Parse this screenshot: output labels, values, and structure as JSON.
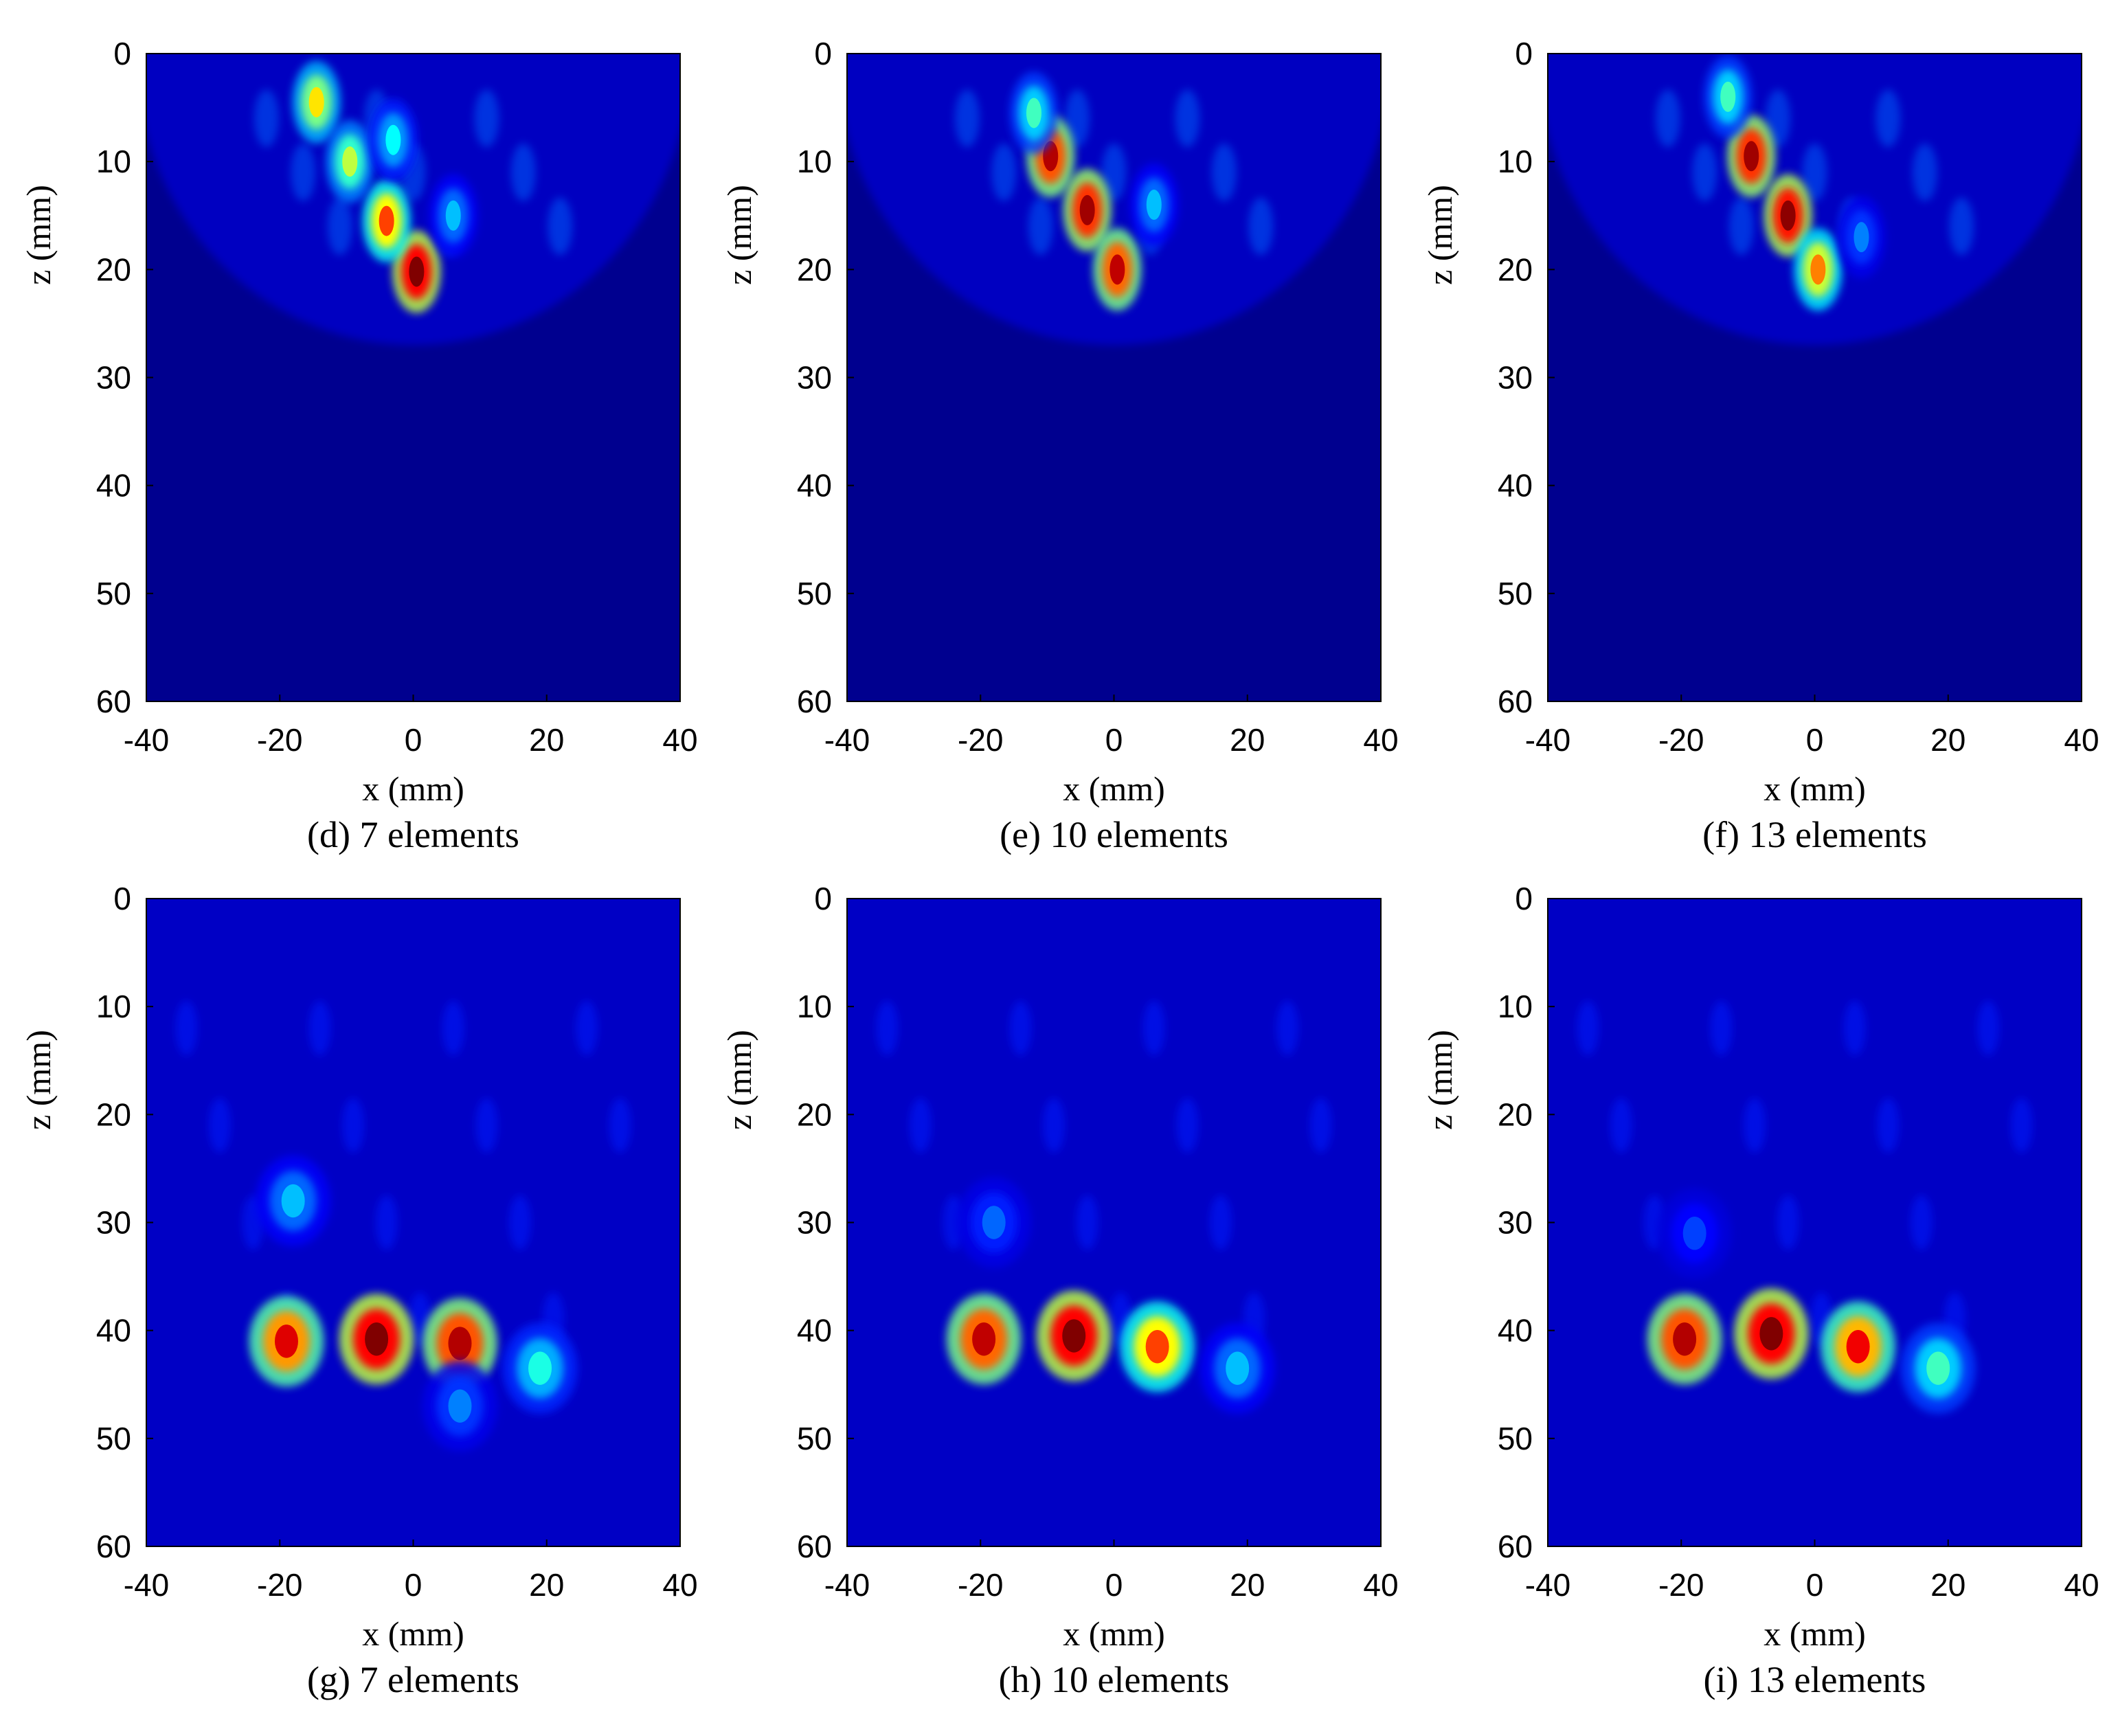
{
  "colormap": [
    "#00008f",
    "#0000ff",
    "#00ffff",
    "#ffff00",
    "#ff0000",
    "#800000"
  ],
  "chart_data": [
    {
      "type": "heatmap",
      "caption": "(d) 7 elements",
      "xlabel": "x (mm)",
      "ylabel": "z (mm)",
      "xlim": [
        -40,
        40
      ],
      "ylim": [
        0,
        60
      ],
      "y_reversed": true,
      "xticks": [
        "-40",
        "-20",
        "0",
        "20",
        "40"
      ],
      "yticks": [
        "0",
        "10",
        "20",
        "30",
        "40",
        "50",
        "60"
      ],
      "hotspots": [
        {
          "x": 0.5,
          "z": 20.2,
          "level": 1.0
        },
        {
          "x": -4,
          "z": 15.5,
          "level": 0.75
        },
        {
          "x": -14.5,
          "z": 4.5,
          "level": 0.62
        },
        {
          "x": -9.5,
          "z": 10,
          "level": 0.55
        },
        {
          "x": -3,
          "z": 8,
          "level": 0.4
        },
        {
          "x": 6,
          "z": 15,
          "level": 0.35
        }
      ]
    },
    {
      "type": "heatmap",
      "caption": "(e) 10 elements",
      "xlabel": "x (mm)",
      "ylabel": "z (mm)",
      "xlim": [
        -40,
        40
      ],
      "ylim": [
        0,
        60
      ],
      "y_reversed": true,
      "xticks": [
        "-40",
        "-20",
        "0",
        "20",
        "40"
      ],
      "yticks": [
        "0",
        "10",
        "20",
        "30",
        "40",
        "50",
        "60"
      ],
      "hotspots": [
        {
          "x": -9.5,
          "z": 9.5,
          "level": 0.92
        },
        {
          "x": -4,
          "z": 14.5,
          "level": 0.95
        },
        {
          "x": 0.5,
          "z": 20,
          "level": 0.9
        },
        {
          "x": -12,
          "z": 5.5,
          "level": 0.45
        },
        {
          "x": 6,
          "z": 14,
          "level": 0.35
        }
      ]
    },
    {
      "type": "heatmap",
      "caption": "(f) 13 elements",
      "xlabel": "x (mm)",
      "ylabel": "z (mm)",
      "xlim": [
        -40,
        40
      ],
      "ylim": [
        0,
        60
      ],
      "y_reversed": true,
      "xticks": [
        "-40",
        "-20",
        "0",
        "20",
        "40"
      ],
      "yticks": [
        "0",
        "10",
        "20",
        "30",
        "40",
        "50",
        "60"
      ],
      "hotspots": [
        {
          "x": -9.5,
          "z": 9.5,
          "level": 0.95
        },
        {
          "x": -4,
          "z": 15,
          "level": 0.98
        },
        {
          "x": 0.5,
          "z": 20,
          "level": 0.7
        },
        {
          "x": -13,
          "z": 4,
          "level": 0.45
        },
        {
          "x": 7,
          "z": 17,
          "level": 0.3
        }
      ]
    },
    {
      "type": "heatmap",
      "caption": "(g) 7 elements",
      "xlabel": "x (mm)",
      "ylabel": "z (mm)",
      "xlim": [
        -40,
        40
      ],
      "ylim": [
        0,
        60
      ],
      "y_reversed": true,
      "xticks": [
        "-40",
        "-20",
        "0",
        "20",
        "40"
      ],
      "yticks": [
        "0",
        "10",
        "20",
        "30",
        "40",
        "50",
        "60"
      ],
      "hotspots": [
        {
          "x": -19,
          "z": 41,
          "level": 0.85
        },
        {
          "x": -5.5,
          "z": 40.8,
          "level": 1.0
        },
        {
          "x": 7,
          "z": 41.2,
          "level": 0.92
        },
        {
          "x": 19,
          "z": 43.5,
          "level": 0.42
        },
        {
          "x": -18,
          "z": 28,
          "level": 0.35
        },
        {
          "x": 7,
          "z": 47,
          "level": 0.3
        }
      ]
    },
    {
      "type": "heatmap",
      "caption": "(h) 10 elements",
      "xlabel": "x (mm)",
      "ylabel": "z (mm)",
      "xlim": [
        -40,
        40
      ],
      "ylim": [
        0,
        60
      ],
      "y_reversed": true,
      "xticks": [
        "-40",
        "-20",
        "0",
        "20",
        "40"
      ],
      "yticks": [
        "0",
        "10",
        "20",
        "30",
        "40",
        "50",
        "60"
      ],
      "hotspots": [
        {
          "x": -19.5,
          "z": 40.8,
          "level": 0.9
        },
        {
          "x": -6,
          "z": 40.5,
          "level": 1.0
        },
        {
          "x": 6.5,
          "z": 41.5,
          "level": 0.75
        },
        {
          "x": 18.5,
          "z": 43.5,
          "level": 0.35
        },
        {
          "x": -18,
          "z": 30,
          "level": 0.28
        }
      ]
    },
    {
      "type": "heatmap",
      "caption": "(i) 13 elements",
      "xlabel": "x (mm)",
      "ylabel": "z (mm)",
      "xlim": [
        -40,
        40
      ],
      "ylim": [
        0,
        60
      ],
      "y_reversed": true,
      "xticks": [
        "-40",
        "-20",
        "0",
        "20",
        "40"
      ],
      "yticks": [
        "0",
        "10",
        "20",
        "30",
        "40",
        "50",
        "60"
      ],
      "hotspots": [
        {
          "x": -19.5,
          "z": 40.8,
          "level": 0.92
        },
        {
          "x": -6.5,
          "z": 40.3,
          "level": 1.0
        },
        {
          "x": 6.5,
          "z": 41.5,
          "level": 0.82
        },
        {
          "x": 18.5,
          "z": 43.5,
          "level": 0.45
        },
        {
          "x": -18,
          "z": 31,
          "level": 0.25
        }
      ]
    }
  ]
}
